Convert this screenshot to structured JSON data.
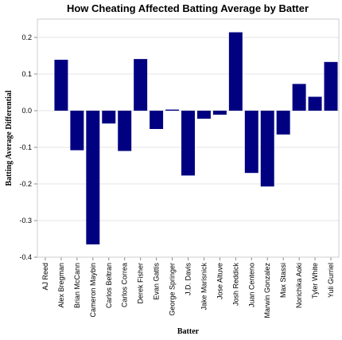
{
  "chart_data": {
    "type": "bar",
    "title": "How Cheating Affected Batting Average by Batter",
    "xlabel": "Batter",
    "ylabel": "Batting Average Differential",
    "ylim": [
      -0.4,
      0.25
    ],
    "yticks": [
      0.2,
      0.1,
      0.0,
      -0.1,
      -0.2,
      -0.3,
      -0.4
    ],
    "ytick_labels": [
      "0.2",
      "0.1",
      "0.0",
      "-0.1",
      "-0.2",
      "-0.3",
      "-0.4"
    ],
    "grid": true,
    "bar_color": "#000080",
    "categories": [
      "AJ Reed",
      "Alex Bregman",
      "Brian McCann",
      "Cameron Maybin",
      "Carlos Beltran",
      "Carlos Correa",
      "Derek Fisher",
      "Evan Gattis",
      "George Springer",
      "J.D. Davis",
      "Jake Marisnick",
      "Jose Altuve",
      "Josh Reddick",
      "Juan Centeno",
      "Marwin Gonzalez",
      "Max Stassi",
      "Norichika Aoki",
      "Tyler White",
      "Yuli Gurriel"
    ],
    "values": [
      0.0,
      0.139,
      -0.108,
      -0.365,
      -0.035,
      -0.11,
      0.141,
      -0.05,
      0.003,
      -0.177,
      -0.022,
      -0.011,
      0.214,
      -0.17,
      -0.207,
      -0.065,
      0.073,
      0.038,
      0.133
    ]
  }
}
